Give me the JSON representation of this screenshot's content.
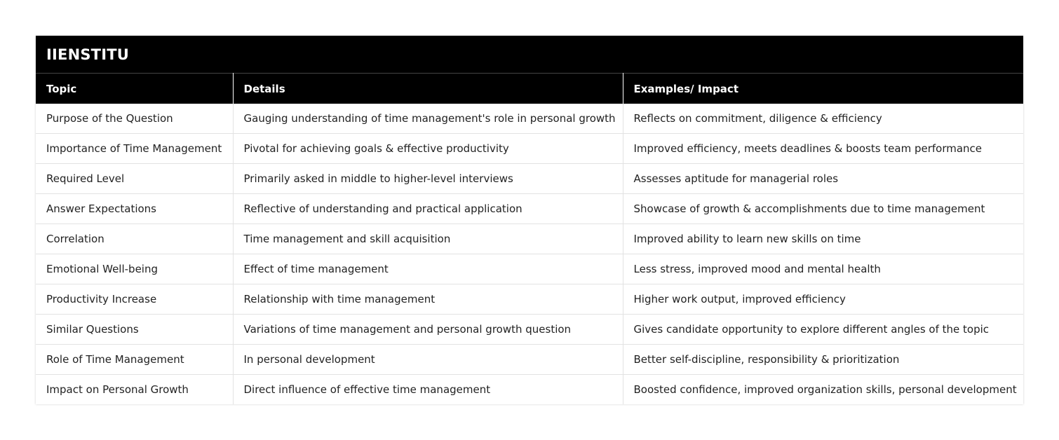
{
  "table": {
    "title": "IIENSTITU",
    "headers": [
      "Topic",
      "Details",
      "Examples/ Impact"
    ],
    "rows": [
      [
        "Purpose of the Question",
        "Gauging understanding of time management's role in personal growth",
        "Reflects on commitment, diligence & efficiency"
      ],
      [
        "Importance of Time Management",
        "Pivotal for achieving goals & effective productivity",
        "Improved efficiency, meets deadlines & boosts team performance"
      ],
      [
        "Required Level",
        "Primarily asked in middle to higher-level interviews",
        "Assesses aptitude for managerial roles"
      ],
      [
        "Answer Expectations",
        "Reflective of understanding and practical application",
        "Showcase of growth & accomplishments due to time management"
      ],
      [
        "Correlation",
        "Time management and skill acquisition",
        "Improved ability to learn new skills on time"
      ],
      [
        "Emotional Well-being",
        "Effect of time management",
        "Less stress, improved mood and mental health"
      ],
      [
        "Productivity Increase",
        "Relationship with time management",
        "Higher work output, improved efficiency"
      ],
      [
        "Similar Questions",
        "Variations of time management and personal growth question",
        "Gives candidate opportunity to explore different angles of the topic"
      ],
      [
        "Role of Time Management",
        "In personal development",
        "Better self-discipline, responsibility & prioritization"
      ],
      [
        "Impact on Personal Growth",
        "Direct influence of effective time management",
        "Boosted confidence, improved organization skills, personal development"
      ]
    ]
  },
  "colors": {
    "header_bg": "#000000",
    "header_text": "#ffffff",
    "body_text": "#222222",
    "grid_line": "#e2e2e2"
  }
}
